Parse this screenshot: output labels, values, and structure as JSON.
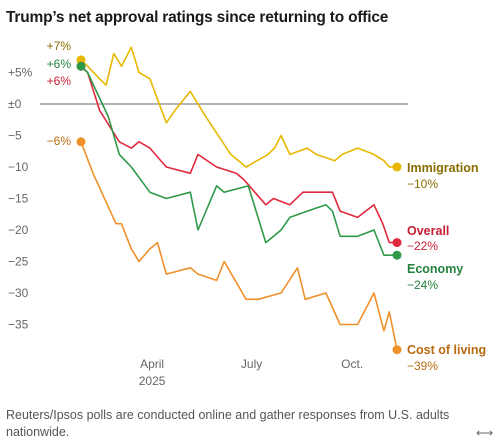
{
  "title": "Trump’s net approval ratings since returning to office",
  "note": "Reuters/Ipsos polls are conducted online and gather responses from U.S. adults nationwide.",
  "icons": {
    "expand": "expand-arrows-icon"
  },
  "chart_data": {
    "type": "line",
    "title": "Trump’s net approval ratings since returning to office",
    "xlabel": "",
    "ylabel": "",
    "x_ticks": [
      "April\n2025",
      "July",
      "Oct."
    ],
    "y_ticks": [
      "+5%",
      "±0",
      "−5",
      "−10",
      "−15",
      "−20",
      "−25",
      "−30",
      "−35"
    ],
    "y_tick_values": [
      5,
      0,
      -5,
      -10,
      -15,
      -20,
      -25,
      -30,
      -35
    ],
    "ylim": [
      -39,
      8
    ],
    "grid": false,
    "legend": "labels at line ends",
    "series": [
      {
        "name": "Immigration",
        "color": "#e8b800",
        "text_color": "#8a6d00",
        "start_label": "+7%",
        "end_label": "−10%",
        "x": [
          "2025-01-26",
          "2025-02-01",
          "2025-02-12",
          "2025-02-18",
          "2025-02-25",
          "2025-03-04",
          "2025-03-13",
          "2025-03-20",
          "2025-03-30",
          "2025-04-14",
          "2025-04-22",
          "2025-05-06",
          "2025-05-20",
          "2025-06-12",
          "2025-06-26",
          "2025-07-16",
          "2025-07-22",
          "2025-07-28",
          "2025-08-05",
          "2025-08-21",
          "2025-08-29",
          "2025-09-07",
          "2025-09-15",
          "2025-09-22",
          "2025-10-06",
          "2025-10-21",
          "2025-10-30",
          "2025-11-04"
        ],
        "values": [
          7,
          6,
          4,
          3,
          8,
          6,
          9,
          5,
          4,
          -3,
          -1,
          2,
          -2,
          -8,
          -10,
          -8,
          -7,
          -5,
          -8,
          -7,
          -8,
          -8.5,
          -9,
          -8,
          -7,
          -8,
          -9,
          -10
        ]
      },
      {
        "name": "Overall",
        "color": "#e0283f",
        "text_color": "#c81e34",
        "start_label": "+6%",
        "end_label": "−22%",
        "x": [
          "2025-01-26",
          "2025-02-01",
          "2025-02-12",
          "2025-03-02",
          "2025-03-13",
          "2025-03-20",
          "2025-03-30",
          "2025-04-14",
          "2025-05-06",
          "2025-05-13",
          "2025-05-30",
          "2025-06-17",
          "2025-06-24",
          "2025-07-14",
          "2025-07-21",
          "2025-08-05",
          "2025-08-17",
          "2025-08-29",
          "2025-09-13",
          "2025-09-20",
          "2025-10-06",
          "2025-10-21",
          "2025-10-29",
          "2025-11-04"
        ],
        "values": [
          6,
          5,
          -1,
          -6,
          -7,
          -6,
          -7,
          -10,
          -11,
          -8,
          -10,
          -11,
          -12,
          -16,
          -15,
          -16,
          -14,
          -14,
          -14,
          -17,
          -18,
          -16,
          -19,
          -22
        ]
      },
      {
        "name": "Economy",
        "color": "#2f9a4a",
        "text_color": "#24823d",
        "start_label": "+6%",
        "end_label": "−24%",
        "x": [
          "2025-01-26",
          "2025-02-01",
          "2025-02-20",
          "2025-03-02",
          "2025-03-13",
          "2025-03-30",
          "2025-04-14",
          "2025-05-06",
          "2025-05-13",
          "2025-05-30",
          "2025-06-06",
          "2025-06-28",
          "2025-07-14",
          "2025-07-28",
          "2025-08-05",
          "2025-08-21",
          "2025-09-07",
          "2025-09-13",
          "2025-09-20",
          "2025-10-06",
          "2025-10-21",
          "2025-10-30",
          "2025-11-04"
        ],
        "values": [
          6,
          5,
          -2,
          -8,
          -10,
          -14,
          -15,
          -14,
          -20,
          -13,
          -14,
          -13,
          -22,
          -20,
          -18,
          -17,
          -16,
          -17,
          -21,
          -21,
          -20,
          -24,
          -24
        ]
      },
      {
        "name": "Cost of living",
        "color": "#f0902a",
        "text_color": "#b96a10",
        "start_label": "−6%",
        "end_label": "−39%",
        "x": [
          "2025-01-26",
          "2025-02-06",
          "2025-02-27",
          "2025-03-04",
          "2025-03-13",
          "2025-03-20",
          "2025-03-30",
          "2025-04-06",
          "2025-04-14",
          "2025-05-06",
          "2025-05-13",
          "2025-05-30",
          "2025-06-06",
          "2025-06-26",
          "2025-07-07",
          "2025-07-28",
          "2025-08-12",
          "2025-08-19",
          "2025-09-07",
          "2025-09-20",
          "2025-10-06",
          "2025-10-21",
          "2025-10-30",
          "2025-11-04"
        ],
        "values": [
          -6,
          -11,
          -19,
          -19,
          -23,
          -25,
          -23,
          -22,
          -27,
          -26,
          -27,
          -28,
          -25,
          -31,
          -31,
          -30,
          -26,
          -31,
          -30,
          -35,
          -35,
          -30,
          -36,
          -33
        ]
      }
    ],
    "end_markers": [
      {
        "series": "Immigration",
        "x": "2025-11-11",
        "y": -10
      },
      {
        "series": "Overall",
        "x": "2025-11-11",
        "y": -22
      },
      {
        "series": "Economy",
        "x": "2025-11-11",
        "y": -24
      },
      {
        "series": "Cost of living",
        "x": "2025-11-11",
        "y": -39
      }
    ],
    "start_date": "2025-01-26",
    "end_date": "2025-11-11"
  }
}
